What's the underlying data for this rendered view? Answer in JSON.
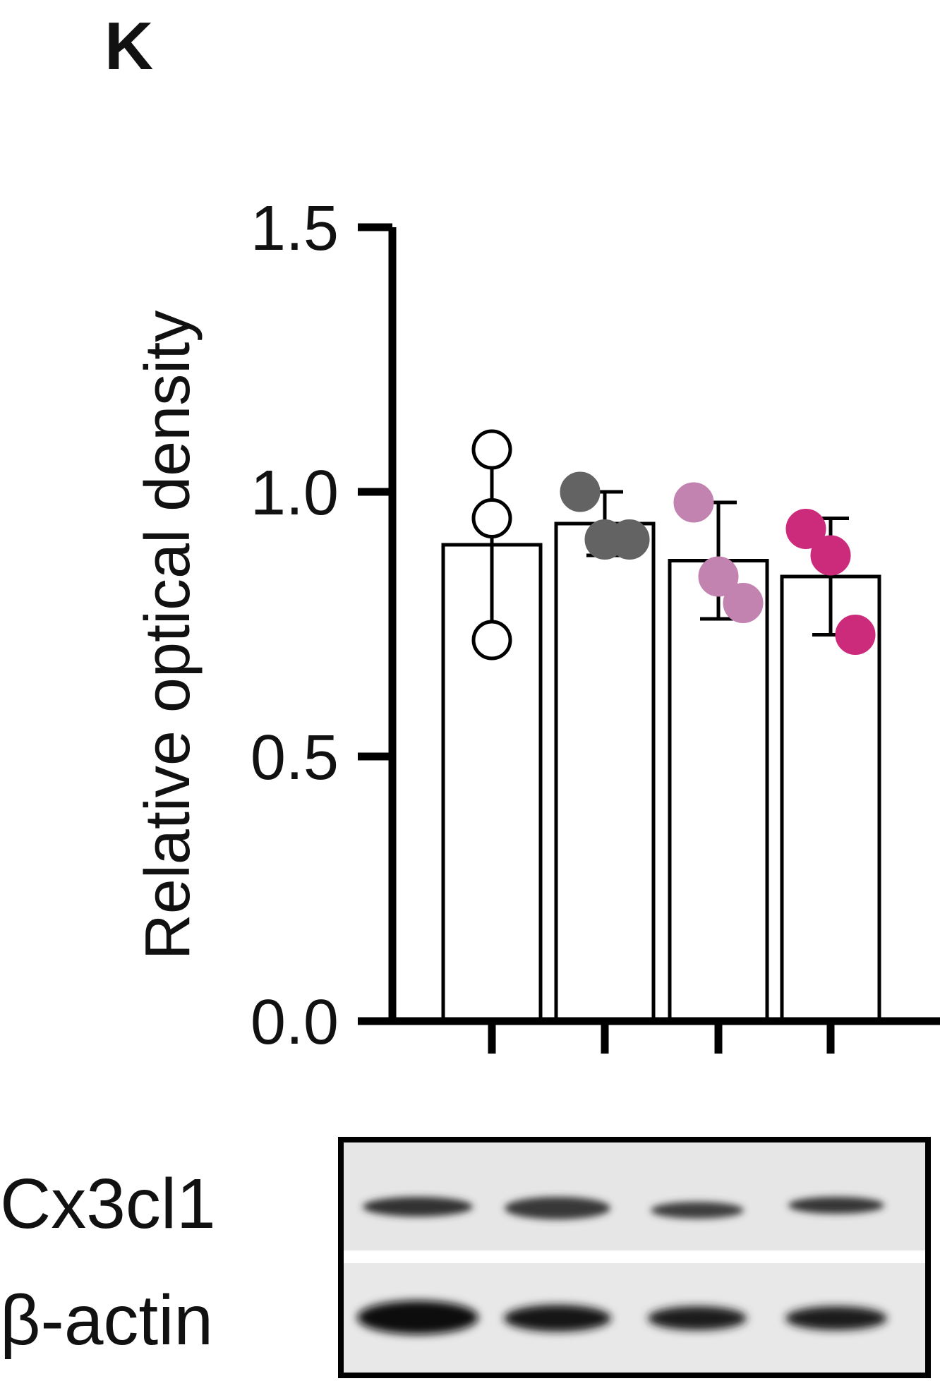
{
  "panel_label": "K",
  "chart_data": {
    "type": "bar",
    "title": "",
    "xlabel": "",
    "ylabel": "Relative optical density",
    "ylim": [
      0,
      1.5
    ],
    "yticks": [
      "0.0",
      "0.5",
      "1.0",
      "1.5"
    ],
    "grid": false,
    "legend": "none",
    "categories": [
      "",
      "",
      "",
      ""
    ],
    "values": [
      0.9,
      0.94,
      0.87,
      0.84
    ],
    "errors": [
      0.18,
      0.06,
      0.11,
      0.11
    ],
    "points": [
      [
        1.08,
        0.95,
        0.72
      ],
      [
        1.0,
        0.91,
        0.91
      ],
      [
        0.98,
        0.84,
        0.79
      ],
      [
        0.93,
        0.88,
        0.73
      ]
    ],
    "point_colors": [
      "#ffffff",
      "#636363",
      "#c383b0",
      "#cc2a7a"
    ],
    "point_outline": [
      "#000000",
      "#636363",
      "#c383b0",
      "#cc2a7a"
    ]
  },
  "blot": {
    "labels": [
      "Cx3cl1",
      "β-actin"
    ]
  }
}
